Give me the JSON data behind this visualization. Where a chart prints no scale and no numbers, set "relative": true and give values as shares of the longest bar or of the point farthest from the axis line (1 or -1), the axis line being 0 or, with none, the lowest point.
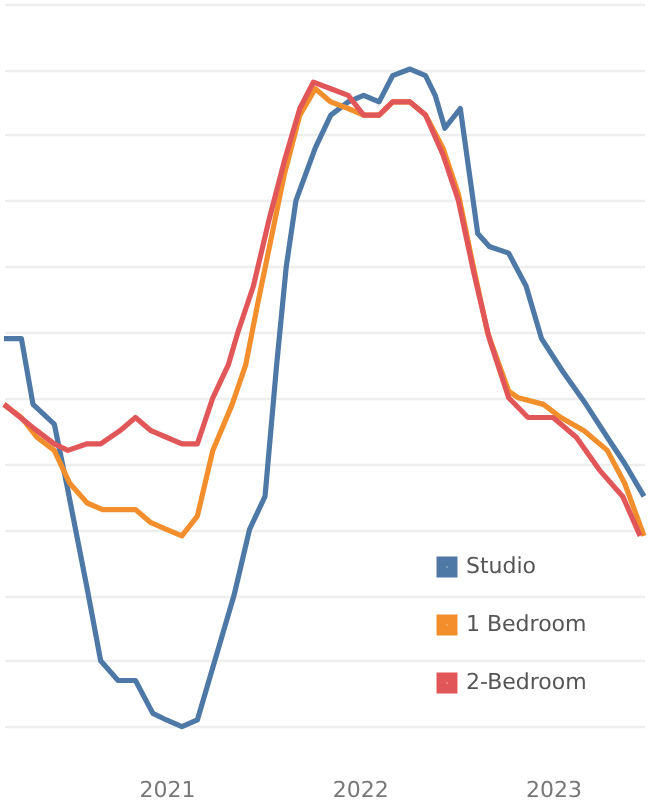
{
  "chart_data": {
    "type": "line",
    "relative": true,
    "xlim": [
      2020.16,
      2023.47
    ],
    "xticks": [
      2021,
      2022,
      2023
    ],
    "grid": "y",
    "legend": "bottom right",
    "line_style": "solid",
    "marker": "none",
    "series": [
      {
        "name": "Studio",
        "color": "#4e79a7",
        "x": [
          2020.16,
          2020.25,
          2020.31,
          2020.42,
          2020.49,
          2020.59,
          2020.66,
          2020.75,
          2020.84,
          2020.93,
          2021.0,
          2021.08,
          2021.16,
          2021.27,
          2021.35,
          2021.43,
          2021.51,
          2021.57,
          2021.62,
          2021.67,
          2021.77,
          2021.85,
          2021.94,
          2022.02,
          2022.1,
          2022.17,
          2022.26,
          2022.34,
          2022.39,
          2022.44,
          2022.52,
          2022.61,
          2022.67,
          2022.77,
          2022.86,
          2022.94,
          2023.05,
          2023.17,
          2023.28,
          2023.37,
          2023.47
        ],
        "values": [
          0.59,
          0.59,
          0.49,
          0.46,
          0.36,
          0.21,
          0.1,
          0.07,
          0.07,
          0.02,
          0.01,
          0,
          0.01,
          0.12,
          0.2,
          0.3,
          0.35,
          0.55,
          0.7,
          0.8,
          0.88,
          0.93,
          0.95,
          0.96,
          0.95,
          0.99,
          1,
          0.99,
          0.96,
          0.91,
          0.94,
          0.75,
          0.73,
          0.72,
          0.67,
          0.59,
          0.54,
          0.49,
          0.44,
          0.4,
          0.35
        ]
      },
      {
        "name": "1 Bedroom",
        "color": "#f28e2b",
        "x": [
          2020.16,
          2020.25,
          2020.33,
          2020.42,
          2020.5,
          2020.59,
          2020.67,
          2020.76,
          2020.84,
          2020.92,
          2021.0,
          2021.08,
          2021.16,
          2021.24,
          2021.34,
          2021.41,
          2021.47,
          2021.54,
          2021.61,
          2021.69,
          2021.77,
          2021.85,
          2021.94,
          2022.02,
          2022.1,
          2022.17,
          2022.26,
          2022.34,
          2022.43,
          2022.51,
          2022.58,
          2022.66,
          2022.77,
          2022.82,
          2022.95,
          2023.04,
          2023.16,
          2023.28,
          2023.37,
          2023.47
        ],
        "values": [
          0.49,
          0.47,
          0.44,
          0.42,
          0.37,
          0.34,
          0.33,
          0.33,
          0.33,
          0.31,
          0.3,
          0.29,
          0.32,
          0.42,
          0.49,
          0.55,
          0.64,
          0.74,
          0.84,
          0.93,
          0.97,
          0.95,
          0.94,
          0.93,
          0.93,
          0.95,
          0.95,
          0.93,
          0.88,
          0.81,
          0.71,
          0.6,
          0.51,
          0.5,
          0.49,
          0.47,
          0.45,
          0.42,
          0.37,
          0.29
        ]
      },
      {
        "name": "2-Bedroom",
        "color": "#e15759",
        "x": [
          2020.16,
          2020.33,
          2020.42,
          2020.49,
          2020.59,
          2020.66,
          2020.76,
          2020.84,
          2020.92,
          2021.0,
          2021.08,
          2021.16,
          2021.24,
          2021.32,
          2021.37,
          2021.45,
          2021.53,
          2021.61,
          2021.69,
          2021.76,
          2021.85,
          2021.94,
          2022.02,
          2022.1,
          2022.17,
          2022.26,
          2022.34,
          2022.43,
          2022.51,
          2022.59,
          2022.67,
          2022.77,
          2022.87,
          2023.0,
          2023.12,
          2023.24,
          2023.36,
          2023.45
        ],
        "values": [
          0.49,
          0.45,
          0.43,
          0.42,
          0.43,
          0.43,
          0.45,
          0.47,
          0.45,
          0.44,
          0.43,
          0.43,
          0.5,
          0.55,
          0.6,
          0.67,
          0.77,
          0.86,
          0.94,
          0.98,
          0.97,
          0.96,
          0.93,
          0.93,
          0.95,
          0.95,
          0.93,
          0.87,
          0.8,
          0.69,
          0.59,
          0.5,
          0.47,
          0.47,
          0.44,
          0.39,
          0.35,
          0.29
        ]
      }
    ]
  }
}
